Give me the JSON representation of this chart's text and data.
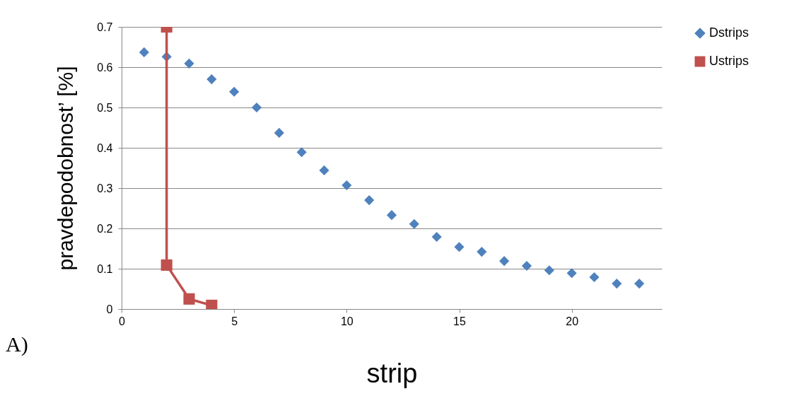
{
  "chart_data": {
    "type": "scatter",
    "xlabel": "strip",
    "ylabel": "pravdepodobnost’ [%]",
    "annotations": [
      "A)"
    ],
    "xlim": [
      0,
      24
    ],
    "xticks": [
      0,
      5,
      10,
      15,
      20
    ],
    "ylim": [
      0,
      0.7
    ],
    "yticks": [
      0,
      0.1,
      0.2,
      0.3,
      0.4,
      0.5,
      0.6,
      0.7
    ],
    "grid": "y",
    "legend": "right",
    "series": [
      {
        "name": "Dstrips",
        "marker": "diamond",
        "color": "#4f81bd",
        "x": [
          1,
          2,
          3,
          4,
          5,
          6,
          7,
          8,
          9,
          10,
          11,
          12,
          13,
          14,
          15,
          16,
          17,
          18,
          19,
          20,
          21,
          22,
          23
        ],
        "values": [
          0.637,
          0.626,
          0.609,
          0.57,
          0.539,
          0.5,
          0.437,
          0.389,
          0.344,
          0.307,
          0.27,
          0.233,
          0.211,
          0.179,
          0.154,
          0.142,
          0.119,
          0.107,
          0.096,
          0.089,
          0.079,
          0.063,
          0.063
        ]
      },
      {
        "name": "Ustrips",
        "type": "line",
        "marker": "square",
        "color": "#c0504d",
        "x": [
          2,
          2,
          3,
          4
        ],
        "values": [
          0.7,
          0.109,
          0.025,
          0.009
        ]
      }
    ]
  }
}
